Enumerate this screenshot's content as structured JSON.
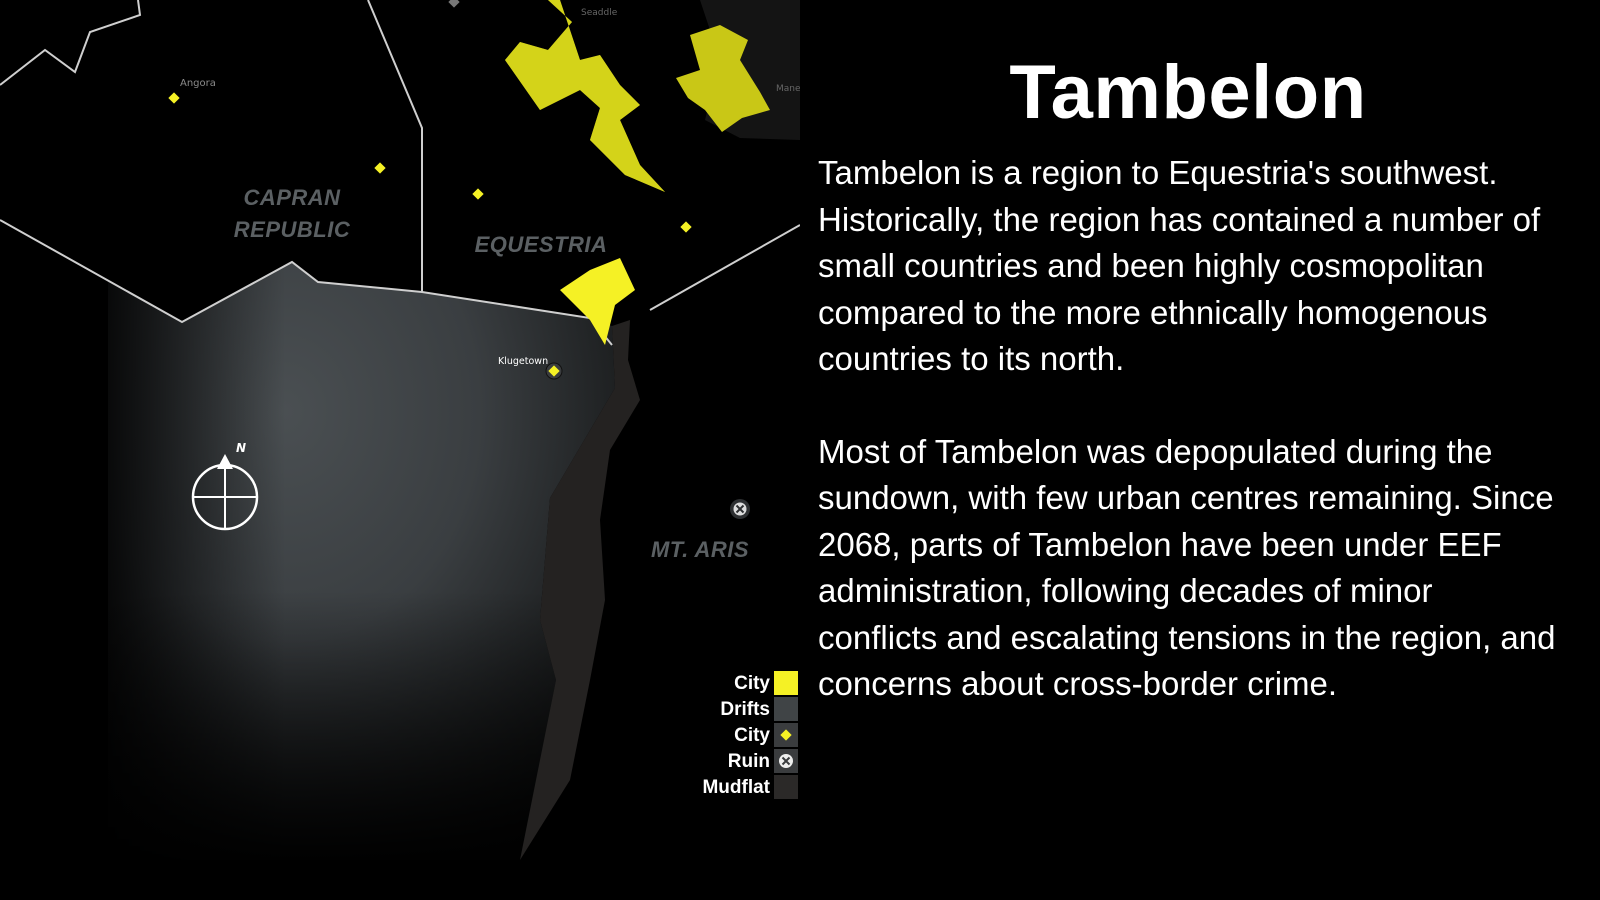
{
  "map": {
    "regions": {
      "capran": [
        "CAPRAN",
        "REPUBLIC"
      ],
      "equestria": "EQUESTRIA",
      "mt_aris": "MT. ARIS"
    },
    "towns": {
      "angora": "Angora",
      "klugetown": "Klugetown",
      "seaddle": "Seaddle",
      "manehattan": "Mane"
    },
    "compass_label": "N",
    "legend": [
      {
        "label": "City",
        "swatch": "city-area",
        "color": "#f5f125"
      },
      {
        "label": "Drifts",
        "swatch": "drifts-area",
        "color": "#404446"
      },
      {
        "label": "City",
        "swatch": "city-point",
        "color": "#f5f125"
      },
      {
        "label": "Ruin",
        "swatch": "ruin-point",
        "color": "#3a3c3e"
      },
      {
        "label": "Mudflat",
        "swatch": "mudflat-area",
        "color": "#2b2928"
      }
    ]
  },
  "info": {
    "title": "Tambelon",
    "paragraphs": [
      "Tambelon is a region to Equestria's southwest. Historically, the region has contained a number of small countries and been highly cosmopolitan compared to the more ethnically homogenous countries to its north.",
      "Most of Tambelon was depopulated during the sundown, with few urban centres remaining. Since 2068, parts of Tambelon have been under EEF administration, following decades of minor conflicts and escalating tensions in the region, and concerns about cross-border crime."
    ]
  }
}
